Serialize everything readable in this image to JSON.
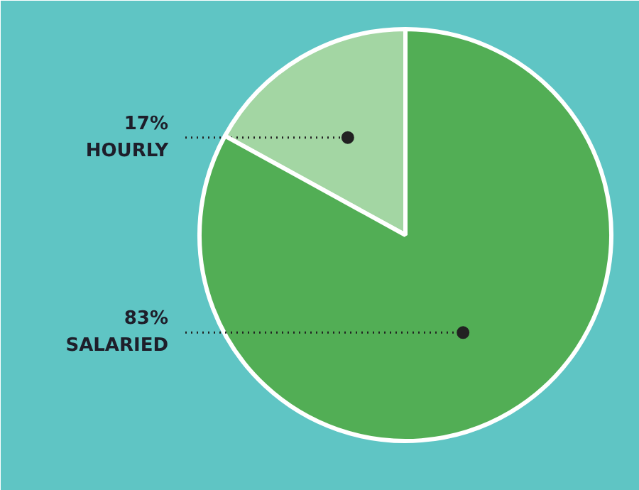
{
  "chart_data": {
    "type": "pie",
    "categories": [
      "HOURLY",
      "SALARIED"
    ],
    "values": [
      17,
      83
    ],
    "colors": [
      "#a3d6a3",
      "#52ae55"
    ],
    "value_labels": [
      "17%",
      "83%"
    ]
  }
}
